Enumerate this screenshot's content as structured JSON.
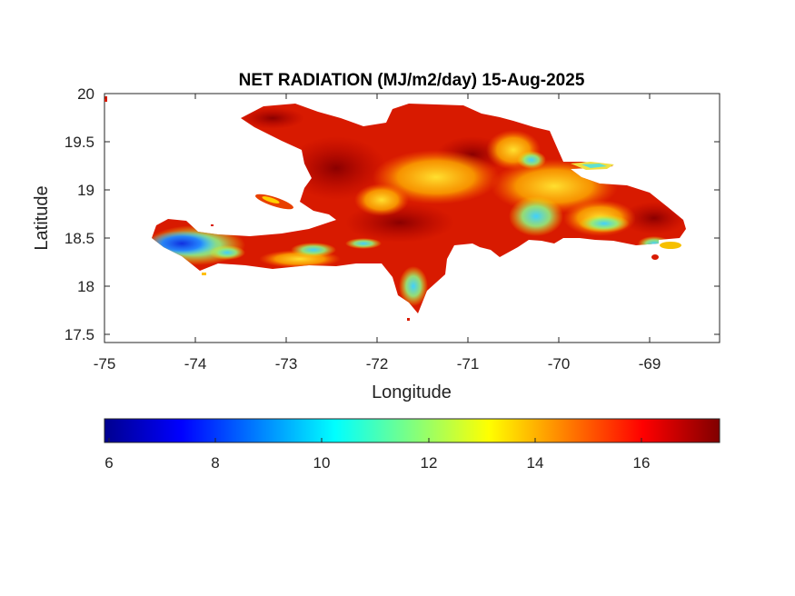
{
  "title": "NET RADIATION (MJ/m2/day) 15-Aug-2025",
  "xlabel": "Longitude",
  "ylabel": "Latitude",
  "xticks": [
    "-75",
    "-74",
    "-73",
    "-72",
    "-71",
    "-70",
    "-69"
  ],
  "yticks": [
    "20",
    "19.5",
    "19",
    "18.5",
    "18",
    "17.5"
  ],
  "colorbar": {
    "colormap": "jet",
    "min": 5.9,
    "max": 17.5,
    "ticks": [
      "6",
      "8",
      "10",
      "12",
      "14",
      "16"
    ]
  },
  "chart_data": {
    "type": "heatmap",
    "title": "NET RADIATION (MJ/m2/day) 15-Aug-2025",
    "xlabel": "Longitude",
    "ylabel": "Latitude",
    "xlim": [
      -75,
      -68.2
    ],
    "ylim": [
      17.4,
      20
    ],
    "region": "Hispaniola",
    "value_range": [
      5.9,
      17.5
    ],
    "colormap": "jet",
    "grid": false
  }
}
